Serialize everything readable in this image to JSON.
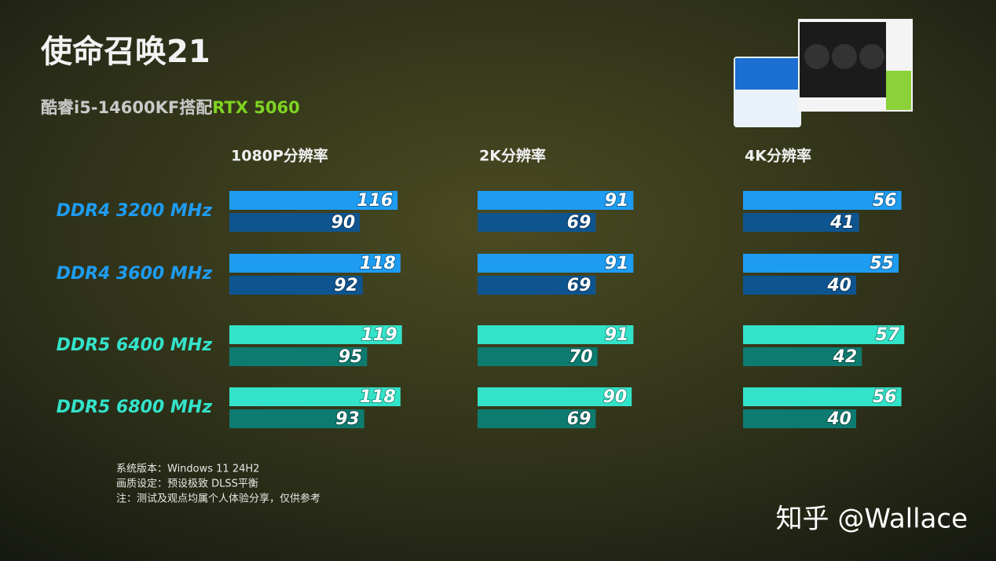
{
  "title": "使命召唤21",
  "subtitle": [
    "酷睿i5-14600KF搭配",
    "RTX 5060"
  ],
  "notes": [
    "系统版本：Windows 11 24H2",
    "画质设定：预设极致 DLSS平衡",
    "注：测试及观点均属个人体验分享，仅供参考"
  ],
  "watermark": "知乎 @Wallace",
  "chart_data": [
    {
      "type": "bar",
      "title": "1080P分辨率",
      "categories": [
        "DDR4 3200 MHz",
        "DDR4 3600 MHz",
        "DDR5 6400 MHz",
        "DDR5 6800 MHz"
      ],
      "xlim": [
        0,
        130
      ],
      "series": [
        {
          "colors": [
            "#1e9cf2",
            "#1e9cf2",
            "#33e3c9",
            "#33e3c9"
          ],
          "values": [
            116,
            118,
            119,
            118
          ]
        },
        {
          "colors": [
            "#0e5590",
            "#0e5590",
            "#0e7b70",
            "#0e7b70"
          ],
          "values": [
            90,
            92,
            95,
            93
          ]
        }
      ]
    },
    {
      "type": "bar",
      "title": "2K分辨率",
      "xlim": [
        0,
        100
      ],
      "series": [
        {
          "colors": [
            "#1e9cf2",
            "#1e9cf2",
            "#33e3c9",
            "#33e3c9"
          ],
          "values": [
            91,
            91,
            91,
            90
          ]
        },
        {
          "colors": [
            "#0e5590",
            "#0e5590",
            "#0e7b70",
            "#0e7b70"
          ],
          "values": [
            69,
            69,
            70,
            69
          ]
        }
      ]
    },
    {
      "type": "bar",
      "title": "4K分辨率",
      "xlim": [
        0,
        60
      ],
      "series": [
        {
          "colors": [
            "#1e9cf2",
            "#1e9cf2",
            "#33e3c9",
            "#33e3c9"
          ],
          "values": [
            56,
            55,
            57,
            56
          ]
        },
        {
          "colors": [
            "#0e5590",
            "#0e5590",
            "#0e7b70",
            "#0e7b70"
          ],
          "values": [
            41,
            40,
            42,
            40
          ]
        }
      ]
    }
  ]
}
